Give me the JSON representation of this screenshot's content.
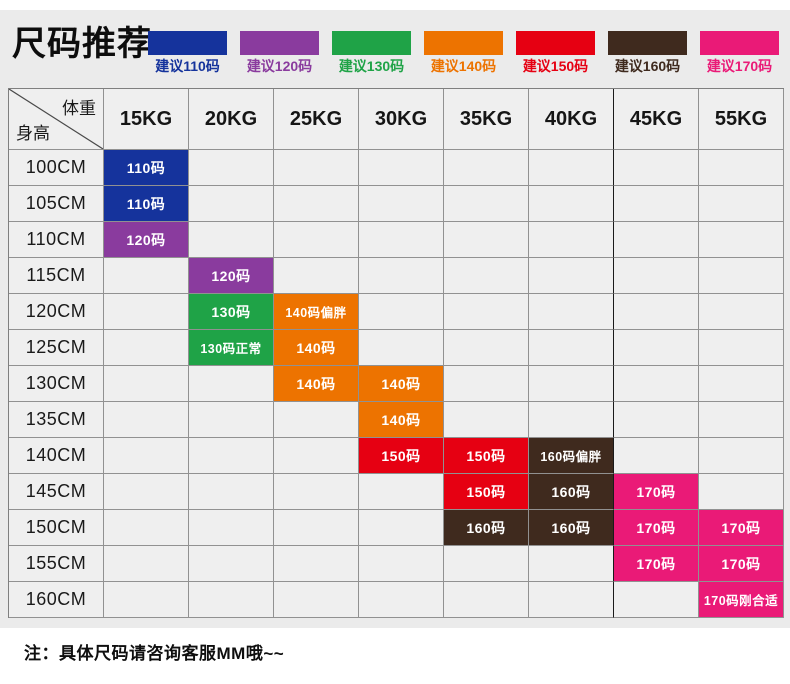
{
  "title": "尺码推荐",
  "note": "注：具体尺码请咨询客服MM哦~~",
  "colors": {
    "size110": "#15339C",
    "size120": "#8A3B9E",
    "size130": "#1FA347",
    "size140": "#ED7300",
    "size150": "#E60012",
    "size160": "#3F2A1E",
    "size170": "#EA1A77",
    "page_band": "#EBEBEB",
    "cell_bg": "#EFEFEF",
    "grid_line": "#919191"
  },
  "legend": [
    {
      "label": "建议110码",
      "color_key": "size110"
    },
    {
      "label": "建议120码",
      "color_key": "size120"
    },
    {
      "label": "建议130码",
      "color_key": "size130"
    },
    {
      "label": "建议140码",
      "color_key": "size140"
    },
    {
      "label": "建议150码",
      "color_key": "size150"
    },
    {
      "label": "建议160码",
      "color_key": "size160"
    },
    {
      "label": "建议170码",
      "color_key": "size170"
    }
  ],
  "table": {
    "corner_top_right": "体重",
    "corner_bottom_left": "身高"
  },
  "chart_data": {
    "type": "table",
    "title": "尺码推荐",
    "x_axis_label": "体重",
    "y_axis_label": "身高",
    "columns": [
      "15KG",
      "20KG",
      "25KG",
      "30KG",
      "35KG",
      "40KG",
      "45KG",
      "55KG"
    ],
    "rows": [
      "100CM",
      "105CM",
      "110CM",
      "115CM",
      "120CM",
      "125CM",
      "130CM",
      "135CM",
      "140CM",
      "145CM",
      "150CM",
      "155CM",
      "160CM"
    ],
    "cells": [
      {
        "row": "100CM",
        "col": "15KG",
        "label": "110码",
        "color_key": "size110"
      },
      {
        "row": "105CM",
        "col": "15KG",
        "label": "110码",
        "color_key": "size110"
      },
      {
        "row": "110CM",
        "col": "15KG",
        "label": "120码",
        "color_key": "size120"
      },
      {
        "row": "115CM",
        "col": "20KG",
        "label": "120码",
        "color_key": "size120"
      },
      {
        "row": "120CM",
        "col": "20KG",
        "label": "130码",
        "color_key": "size130"
      },
      {
        "row": "120CM",
        "col": "25KG",
        "label": "140码偏胖",
        "color_key": "size140"
      },
      {
        "row": "125CM",
        "col": "20KG",
        "label": "130码正常",
        "color_key": "size130"
      },
      {
        "row": "125CM",
        "col": "25KG",
        "label": "140码",
        "color_key": "size140"
      },
      {
        "row": "130CM",
        "col": "25KG",
        "label": "140码",
        "color_key": "size140"
      },
      {
        "row": "130CM",
        "col": "30KG",
        "label": "140码",
        "color_key": "size140"
      },
      {
        "row": "135CM",
        "col": "30KG",
        "label": "140码",
        "color_key": "size140"
      },
      {
        "row": "140CM",
        "col": "30KG",
        "label": "150码",
        "color_key": "size150"
      },
      {
        "row": "140CM",
        "col": "35KG",
        "label": "150码",
        "color_key": "size150"
      },
      {
        "row": "140CM",
        "col": "40KG",
        "label": "160码偏胖",
        "color_key": "size160"
      },
      {
        "row": "145CM",
        "col": "35KG",
        "label": "150码",
        "color_key": "size150"
      },
      {
        "row": "145CM",
        "col": "40KG",
        "label": "160码",
        "color_key": "size160"
      },
      {
        "row": "145CM",
        "col": "45KG",
        "label": "170码",
        "color_key": "size170"
      },
      {
        "row": "150CM",
        "col": "35KG",
        "label": "160码",
        "color_key": "size160"
      },
      {
        "row": "150CM",
        "col": "40KG",
        "label": "160码",
        "color_key": "size160"
      },
      {
        "row": "150CM",
        "col": "45KG",
        "label": "170码",
        "color_key": "size170"
      },
      {
        "row": "150CM",
        "col": "55KG",
        "label": "170码",
        "color_key": "size170"
      },
      {
        "row": "155CM",
        "col": "45KG",
        "label": "170码",
        "color_key": "size170"
      },
      {
        "row": "155CM",
        "col": "55KG",
        "label": "170码",
        "color_key": "size170"
      },
      {
        "row": "160CM",
        "col": "55KG",
        "label": "170码刚合适",
        "color_key": "size170"
      }
    ],
    "legend_entries": [
      "建议110码",
      "建议120码",
      "建议130码",
      "建议140码",
      "建议150码",
      "建议160码",
      "建议170码"
    ],
    "grid": true,
    "legend_position": "top"
  }
}
